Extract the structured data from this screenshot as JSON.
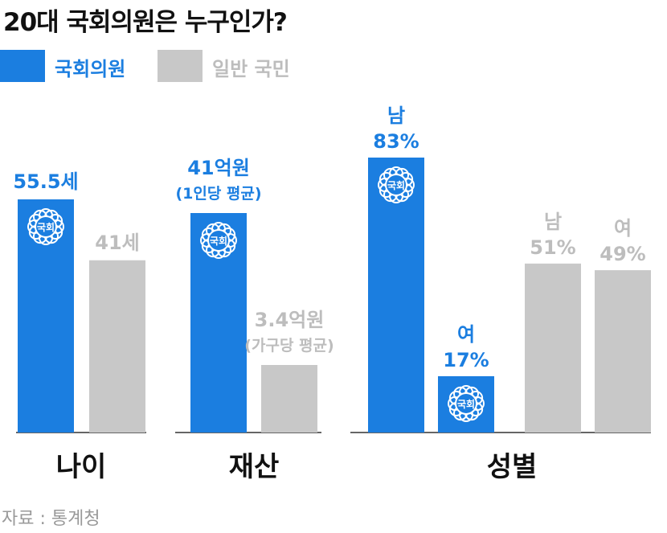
{
  "title": "20대 국회의원은 누구인가?",
  "legend": {
    "member": "국회의원",
    "general": "일반 국민"
  },
  "colors": {
    "member": "#1b7ee0",
    "general": "#c8c8c8",
    "member_text": "#1b7ee0",
    "general_text": "#bdbdbd",
    "axis": "#333333"
  },
  "seal_text": "국회",
  "source": "자료 : 통계청",
  "chart_data": [
    {
      "type": "bar",
      "category": "나이",
      "series": [
        {
          "name": "국회의원",
          "value": 55.5,
          "label": "55.5세",
          "sublabel": ""
        },
        {
          "name": "일반 국민",
          "value": 41,
          "label": "41세",
          "sublabel": ""
        }
      ]
    },
    {
      "type": "bar",
      "category": "재산",
      "series": [
        {
          "name": "국회의원",
          "value": 41,
          "label": "41억원",
          "sublabel": "(1인당 평균)"
        },
        {
          "name": "일반 국민",
          "value": 3.4,
          "label": "3.4억원",
          "sublabel": "(가구당 평균)"
        }
      ]
    },
    {
      "type": "bar",
      "category": "성별",
      "series": [
        {
          "name": "국회의원",
          "value": 83,
          "label": "83%",
          "sublabel": "남",
          "sub_on_top": true
        },
        {
          "name": "국회의원",
          "value": 17,
          "label": "17%",
          "sublabel": "여",
          "sub_on_top": true
        },
        {
          "name": "일반 국민",
          "value": 51,
          "label": "51%",
          "sublabel": "남",
          "sub_on_top": true
        },
        {
          "name": "일반 국민",
          "value": 49,
          "label": "49%",
          "sublabel": "여",
          "sub_on_top": true
        }
      ]
    }
  ]
}
